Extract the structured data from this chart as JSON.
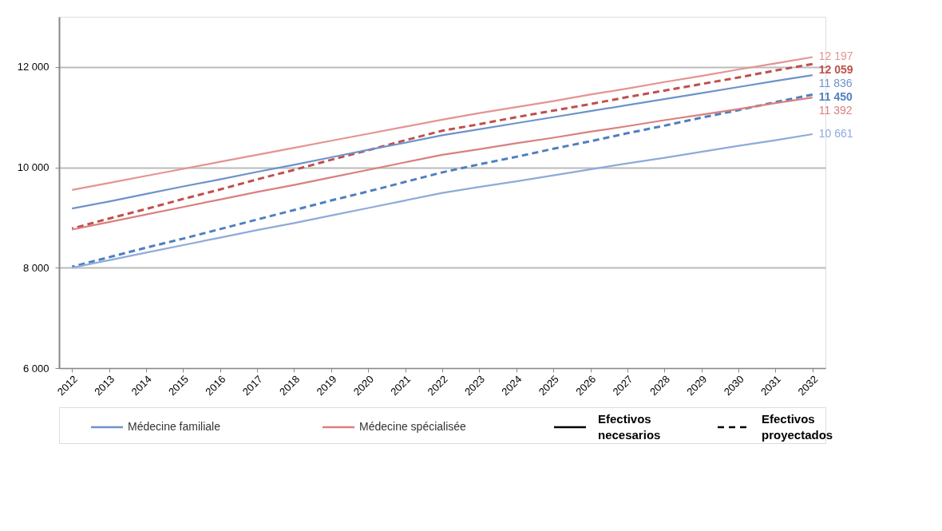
{
  "chart_data": {
    "type": "line",
    "categories": [
      "2012",
      "2013",
      "2014",
      "2015",
      "2016",
      "2017",
      "2018",
      "2019",
      "2020",
      "2021",
      "2022",
      "2023",
      "2024",
      "2025",
      "2026",
      "2027",
      "2028",
      "2029",
      "2030",
      "2031",
      "2032"
    ],
    "ylim": [
      6000,
      13000
    ],
    "yticks": [
      {
        "value": 6000,
        "label": "6 000"
      },
      {
        "value": 8000,
        "label": "8 000"
      },
      {
        "value": 10000,
        "label": "10 000"
      },
      {
        "value": 12000,
        "label": "12 000"
      }
    ],
    "grid": "y",
    "legend": "bottom",
    "annotations": [
      "Efectivos necesarios",
      "Efectivos proyectados"
    ],
    "series": [
      {
        "color": "#e39492",
        "line_style": "solid",
        "values": [
          9550,
          9690,
          9830,
          9970,
          10110,
          10250,
          10390,
          10530,
          10670,
          10810,
          10950,
          11080,
          11200,
          11320,
          11450,
          11570,
          11700,
          11820,
          11950,
          12070,
          12197
        ],
        "value_labels": [
          null,
          null,
          null,
          null,
          null,
          null,
          null,
          null,
          null,
          null,
          null,
          null,
          null,
          null,
          null,
          null,
          null,
          null,
          null,
          null,
          "12 197"
        ]
      },
      {
        "color": "#c0504d",
        "line_style": "dashed",
        "values": [
          8780,
          8980,
          9170,
          9370,
          9560,
          9760,
          9950,
          10150,
          10340,
          10540,
          10730,
          10860,
          11000,
          11130,
          11260,
          11400,
          11530,
          11660,
          11790,
          11930,
          12059
        ],
        "value_labels": [
          null,
          null,
          null,
          null,
          null,
          null,
          null,
          null,
          null,
          null,
          null,
          null,
          null,
          null,
          null,
          null,
          null,
          null,
          null,
          null,
          "12 059"
        ]
      },
      {
        "name": "Médecine familiale",
        "color": "#6d93c9",
        "line_style": "solid",
        "values": [
          9180,
          9320,
          9470,
          9620,
          9760,
          9910,
          10050,
          10200,
          10350,
          10490,
          10640,
          10760,
          10880,
          11000,
          11120,
          11240,
          11360,
          11480,
          11600,
          11720,
          11836
        ],
        "value_labels": [
          null,
          null,
          null,
          null,
          null,
          null,
          null,
          null,
          null,
          null,
          null,
          null,
          null,
          null,
          null,
          null,
          null,
          null,
          null,
          null,
          "11 836"
        ]
      },
      {
        "color": "#4f7fbf",
        "line_style": "dashed",
        "values": [
          8020,
          8210,
          8400,
          8580,
          8770,
          8960,
          9150,
          9340,
          9520,
          9710,
          9900,
          10060,
          10210,
          10370,
          10520,
          10680,
          10830,
          10990,
          11140,
          11300,
          11450
        ],
        "value_labels": [
          null,
          null,
          null,
          null,
          null,
          null,
          null,
          null,
          null,
          null,
          null,
          null,
          null,
          null,
          null,
          null,
          null,
          null,
          null,
          null,
          "11 450"
        ]
      },
      {
        "name": "Médecine spécialisée",
        "color": "#d9807e",
        "line_style": "solid",
        "values": [
          8760,
          8910,
          9060,
          9210,
          9360,
          9510,
          9650,
          9800,
          9950,
          10100,
          10250,
          10360,
          10480,
          10590,
          10710,
          10820,
          10940,
          11050,
          11160,
          11280,
          11392
        ],
        "value_labels": [
          null,
          null,
          null,
          null,
          null,
          null,
          null,
          null,
          null,
          null,
          null,
          null,
          null,
          null,
          null,
          null,
          null,
          null,
          null,
          null,
          "11 392"
        ]
      },
      {
        "color": "#8eaadb",
        "line_style": "solid",
        "values": [
          8000,
          8150,
          8300,
          8450,
          8600,
          8750,
          8890,
          9040,
          9190,
          9340,
          9490,
          9610,
          9720,
          9840,
          9960,
          10080,
          10190,
          10310,
          10430,
          10540,
          10661
        ],
        "value_labels": [
          null,
          null,
          null,
          null,
          null,
          null,
          null,
          null,
          null,
          null,
          null,
          null,
          null,
          null,
          null,
          null,
          null,
          null,
          null,
          null,
          "10 661"
        ]
      }
    ]
  }
}
